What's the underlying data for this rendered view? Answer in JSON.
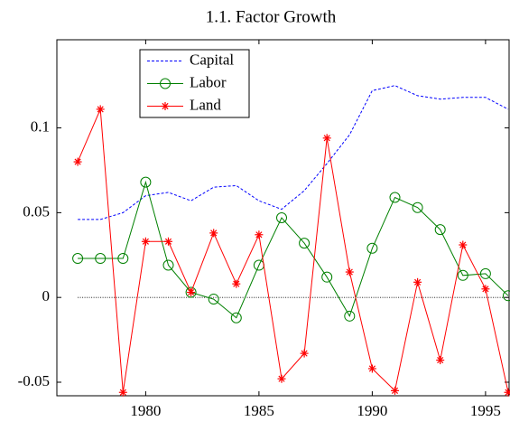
{
  "chart_data": {
    "type": "line",
    "title": "1.1. Factor Growth",
    "x": [
      1977,
      1978,
      1979,
      1980,
      1981,
      1982,
      1983,
      1984,
      1985,
      1986,
      1987,
      1988,
      1989,
      1990,
      1991,
      1992,
      1993,
      1994,
      1995,
      1996
    ],
    "series": [
      {
        "name": "Capital",
        "color": "#0000ff",
        "style": "dashed",
        "values": [
          0.046,
          0.046,
          0.05,
          0.06,
          0.062,
          0.057,
          0.065,
          0.066,
          0.057,
          0.052,
          0.063,
          0.079,
          0.096,
          0.122,
          0.125,
          0.119,
          0.117,
          0.118,
          0.118,
          0.111
        ]
      },
      {
        "name": "Labor",
        "color": "#008000",
        "marker": "circle",
        "values": [
          0.023,
          0.023,
          0.023,
          0.068,
          0.019,
          0.003,
          -0.001,
          -0.012,
          0.019,
          0.047,
          0.032,
          0.012,
          -0.011,
          0.029,
          0.059,
          0.053,
          0.04,
          0.013,
          0.014,
          0.001
        ]
      },
      {
        "name": "Land",
        "color": "#ff0000",
        "marker": "star",
        "values": [
          0.08,
          0.111,
          -0.056,
          0.033,
          0.033,
          0.003,
          0.038,
          0.008,
          0.037,
          -0.048,
          -0.033,
          0.094,
          0.015,
          -0.042,
          -0.055,
          0.009,
          -0.037,
          0.031,
          0.005,
          -0.056
        ]
      }
    ],
    "xlim": [
      1976.08,
      1996.04
    ],
    "xticks": [
      1980,
      1985,
      1990,
      1995
    ],
    "ylim": [
      -0.058,
      0.152
    ],
    "yticks": [
      -0.05,
      0,
      0.05,
      0.1
    ],
    "legend": "upper left"
  }
}
